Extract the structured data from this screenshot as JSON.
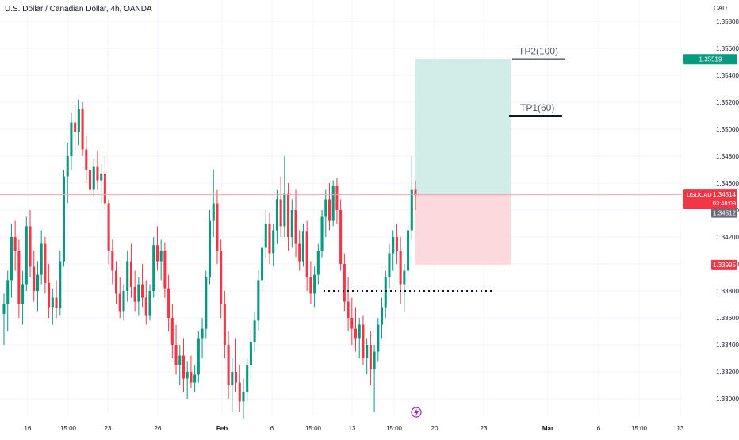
{
  "header": {
    "title": "U.S. Dollar / Canadian Dollar, 4h, OANDA"
  },
  "price_axis": {
    "currency_label": "CAD"
  },
  "colors": {
    "up": "#089981",
    "down": "#f23645",
    "target_zone": "#d1ede7",
    "stop_zone": "#fbd9dc",
    "grid": "#f0f3fa",
    "axis_text": "#131722",
    "last_price_badge": "#f23645",
    "prev_close_badge": "#6a6d78",
    "target_badge": "#089981",
    "stop_badge": "#f23645"
  },
  "badges": {
    "target": "1.35519",
    "symbol": "USDCAD",
    "last_price": "1.34514",
    "countdown": "03:48:09",
    "prev_close": "1.34512",
    "stop": "1.33995"
  },
  "annotations": {
    "tp2": "TP2(100)",
    "tp1": "TP1(60)",
    "event_icon": "lightning-icon"
  },
  "chart_data": {
    "type": "candlestick",
    "title": "U.S. Dollar / Canadian Dollar, 4h, OANDA",
    "symbol": "USDCAD",
    "timeframe": "4h",
    "broker": "OANDA",
    "ylim": [
      1.329,
      1.359
    ],
    "y_ticks": [
      "1.35800",
      "1.35600",
      "1.35400",
      "1.35200",
      "1.35000",
      "1.34800",
      "1.34600",
      "1.34400",
      "1.34200",
      "1.34000",
      "1.33800",
      "1.33600",
      "1.33400",
      "1.33200",
      "1.33000"
    ],
    "x_ticks": [
      "16",
      "15:00",
      "23",
      "26",
      "Feb",
      "6",
      "15:00",
      "13",
      "15:00",
      "20",
      "23",
      "Mar",
      "6",
      "15:00",
      "13"
    ],
    "position": {
      "type": "long",
      "entry": 1.34514,
      "target": 1.35519,
      "stop": 1.33995,
      "tp1": 1.351,
      "tp2": 1.3552,
      "tp1_label": "TP1(60)",
      "tp2_label": "TP2(100)"
    },
    "support_level": 1.338,
    "candles": [
      [
        1.3363,
        1.3378,
        1.334,
        1.337
      ],
      [
        1.337,
        1.3395,
        1.335,
        1.3388
      ],
      [
        1.3388,
        1.343,
        1.3375,
        1.342
      ],
      [
        1.342,
        1.3432,
        1.3395,
        1.341
      ],
      [
        1.341,
        1.3418,
        1.336,
        1.337
      ],
      [
        1.337,
        1.3395,
        1.3355,
        1.3385
      ],
      [
        1.3385,
        1.3435,
        1.338,
        1.3428
      ],
      [
        1.3428,
        1.344,
        1.339,
        1.3398
      ],
      [
        1.3398,
        1.341,
        1.3372,
        1.338
      ],
      [
        1.338,
        1.3402,
        1.3365,
        1.3392
      ],
      [
        1.3392,
        1.3425,
        1.3385,
        1.3415
      ],
      [
        1.3415,
        1.342,
        1.3378,
        1.3386
      ],
      [
        1.3386,
        1.34,
        1.336,
        1.3368
      ],
      [
        1.3368,
        1.3382,
        1.3355,
        1.3375
      ],
      [
        1.3375,
        1.3388,
        1.336,
        1.3367
      ],
      [
        1.3367,
        1.341,
        1.3362,
        1.3402
      ],
      [
        1.3402,
        1.347,
        1.3398,
        1.3465
      ],
      [
        1.3465,
        1.349,
        1.3445,
        1.348
      ],
      [
        1.348,
        1.3512,
        1.347,
        1.3505
      ],
      [
        1.3505,
        1.3518,
        1.3485,
        1.3498
      ],
      [
        1.3498,
        1.3522,
        1.3488,
        1.3515
      ],
      [
        1.3515,
        1.352,
        1.348,
        1.3485
      ],
      [
        1.3485,
        1.3495,
        1.346,
        1.347
      ],
      [
        1.347,
        1.3478,
        1.3448,
        1.3455
      ],
      [
        1.3455,
        1.3478,
        1.345,
        1.3472
      ],
      [
        1.3472,
        1.3484,
        1.3455,
        1.3462
      ],
      [
        1.3462,
        1.3474,
        1.3445,
        1.3467
      ],
      [
        1.3467,
        1.348,
        1.344,
        1.3445
      ],
      [
        1.3445,
        1.3448,
        1.34,
        1.341
      ],
      [
        1.341,
        1.3418,
        1.3385,
        1.3395
      ],
      [
        1.3395,
        1.3402,
        1.337,
        1.3378
      ],
      [
        1.3378,
        1.339,
        1.336,
        1.3365
      ],
      [
        1.3365,
        1.3385,
        1.3358,
        1.338
      ],
      [
        1.338,
        1.341,
        1.3372,
        1.3402
      ],
      [
        1.3402,
        1.3415,
        1.3375,
        1.3383
      ],
      [
        1.3383,
        1.3395,
        1.3365,
        1.3372
      ],
      [
        1.3372,
        1.339,
        1.3362,
        1.3385
      ],
      [
        1.3385,
        1.34,
        1.3368,
        1.3375
      ],
      [
        1.3375,
        1.3388,
        1.3355,
        1.3362
      ],
      [
        1.3362,
        1.3385,
        1.3358,
        1.338
      ],
      [
        1.338,
        1.342,
        1.3375,
        1.3414
      ],
      [
        1.3414,
        1.3428,
        1.3395,
        1.3402
      ],
      [
        1.3402,
        1.3418,
        1.3388,
        1.341
      ],
      [
        1.341,
        1.3416,
        1.3375,
        1.3382
      ],
      [
        1.3382,
        1.3392,
        1.335,
        1.336
      ],
      [
        1.336,
        1.337,
        1.333,
        1.334
      ],
      [
        1.334,
        1.3355,
        1.3318,
        1.3325
      ],
      [
        1.3325,
        1.334,
        1.331,
        1.3332
      ],
      [
        1.3332,
        1.3345,
        1.3305,
        1.3315
      ],
      [
        1.3315,
        1.3328,
        1.33,
        1.332
      ],
      [
        1.332,
        1.3332,
        1.3308,
        1.3312
      ],
      [
        1.3312,
        1.3325,
        1.3305,
        1.3318
      ],
      [
        1.3318,
        1.335,
        1.3312,
        1.3345
      ],
      [
        1.3345,
        1.336,
        1.333,
        1.3352
      ],
      [
        1.3352,
        1.3395,
        1.3345,
        1.339
      ],
      [
        1.339,
        1.344,
        1.3385,
        1.3432
      ],
      [
        1.3432,
        1.347,
        1.342,
        1.3445
      ],
      [
        1.3445,
        1.3455,
        1.34,
        1.341
      ],
      [
        1.341,
        1.3418,
        1.336,
        1.337
      ],
      [
        1.337,
        1.338,
        1.333,
        1.334
      ],
      [
        1.334,
        1.335,
        1.33,
        1.331
      ],
      [
        1.331,
        1.333,
        1.329,
        1.332
      ],
      [
        1.332,
        1.3345,
        1.3305,
        1.3312
      ],
      [
        1.3312,
        1.3325,
        1.329,
        1.3298
      ],
      [
        1.3298,
        1.3315,
        1.3285,
        1.3305
      ],
      [
        1.3305,
        1.333,
        1.3298,
        1.3325
      ],
      [
        1.3325,
        1.335,
        1.3315,
        1.3342
      ],
      [
        1.3342,
        1.3365,
        1.3335,
        1.3358
      ],
      [
        1.3358,
        1.3395,
        1.335,
        1.3388
      ],
      [
        1.3388,
        1.342,
        1.338,
        1.3412
      ],
      [
        1.3412,
        1.344,
        1.3405,
        1.343
      ],
      [
        1.343,
        1.3438,
        1.34,
        1.3408
      ],
      [
        1.3408,
        1.343,
        1.3398,
        1.3425
      ],
      [
        1.3425,
        1.3455,
        1.3415,
        1.3448
      ],
      [
        1.3448,
        1.3465,
        1.342,
        1.3428
      ],
      [
        1.3428,
        1.348,
        1.342,
        1.3452
      ],
      [
        1.3452,
        1.346,
        1.341,
        1.342
      ],
      [
        1.342,
        1.3448,
        1.3412,
        1.344
      ],
      [
        1.344,
        1.3455,
        1.3405,
        1.3415
      ],
      [
        1.3415,
        1.3425,
        1.3395,
        1.3402
      ],
      [
        1.3402,
        1.343,
        1.3398,
        1.3424
      ],
      [
        1.3424,
        1.3432,
        1.338,
        1.339
      ],
      [
        1.339,
        1.3402,
        1.337,
        1.3378
      ],
      [
        1.3378,
        1.3398,
        1.3368,
        1.3392
      ],
      [
        1.3392,
        1.3415,
        1.3385,
        1.341
      ],
      [
        1.341,
        1.344,
        1.3405,
        1.3435
      ],
      [
        1.3435,
        1.3455,
        1.342,
        1.3448
      ],
      [
        1.3448,
        1.346,
        1.3425,
        1.3432
      ],
      [
        1.3432,
        1.3462,
        1.3428,
        1.3458
      ],
      [
        1.3458,
        1.3464,
        1.343,
        1.344
      ],
      [
        1.344,
        1.3448,
        1.3395,
        1.34
      ],
      [
        1.34,
        1.3408,
        1.3365,
        1.3372
      ],
      [
        1.3372,
        1.339,
        1.335,
        1.336
      ],
      [
        1.336,
        1.3375,
        1.334,
        1.3352
      ],
      [
        1.3352,
        1.3368,
        1.3335,
        1.3345
      ],
      [
        1.3345,
        1.336,
        1.333,
        1.3355
      ],
      [
        1.3355,
        1.3362,
        1.3325,
        1.333
      ],
      [
        1.333,
        1.3345,
        1.3318,
        1.334
      ],
      [
        1.334,
        1.335,
        1.331,
        1.3322
      ],
      [
        1.3322,
        1.334,
        1.329,
        1.3335
      ],
      [
        1.3335,
        1.336,
        1.3328,
        1.3355
      ],
      [
        1.3355,
        1.3375,
        1.3345,
        1.3368
      ],
      [
        1.3368,
        1.3395,
        1.336,
        1.339
      ],
      [
        1.339,
        1.3415,
        1.3382,
        1.3408
      ],
      [
        1.3408,
        1.3425,
        1.3395,
        1.342
      ],
      [
        1.342,
        1.343,
        1.34,
        1.341
      ],
      [
        1.341,
        1.342,
        1.337,
        1.3385
      ],
      [
        1.3385,
        1.34,
        1.3365,
        1.3395
      ],
      [
        1.3395,
        1.343,
        1.339,
        1.3425
      ],
      [
        1.3425,
        1.348,
        1.3418,
        1.3455
      ],
      [
        1.3455,
        1.3462,
        1.344,
        1.3451
      ]
    ]
  }
}
